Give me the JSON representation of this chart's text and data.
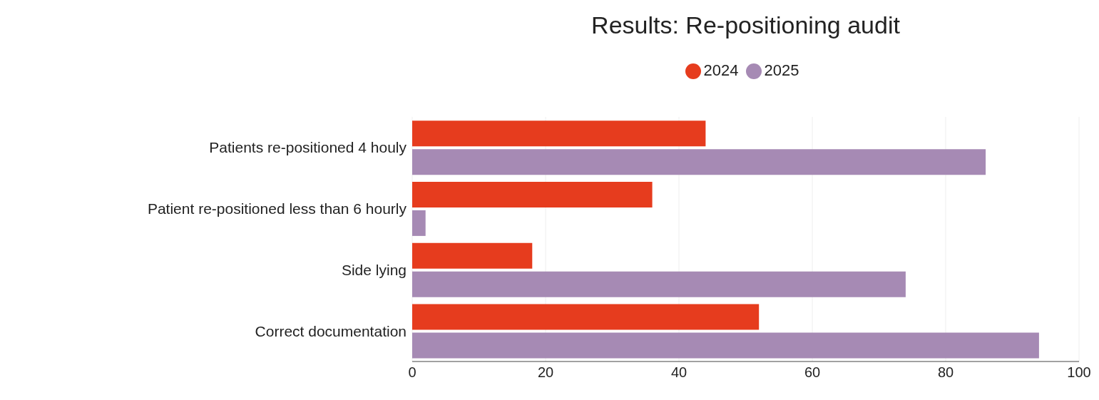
{
  "chart_data": {
    "type": "bar",
    "orientation": "horizontal",
    "title": "Results: Re-positioning audit",
    "categories": [
      "Patients re-positioned 4 houly",
      "Patient re-positioned less than 6 hourly",
      "Side lying",
      "Correct documentation"
    ],
    "series": [
      {
        "name": "2024",
        "color": "#e63c1e",
        "values": [
          44,
          36,
          18,
          52
        ]
      },
      {
        "name": "2025",
        "color": "#a68ab4",
        "values": [
          86,
          2,
          74,
          94
        ]
      }
    ],
    "xlim": [
      0,
      100
    ],
    "xticks": [
      0,
      20,
      40,
      60,
      80,
      100
    ],
    "grid": "x",
    "legend": "top"
  }
}
